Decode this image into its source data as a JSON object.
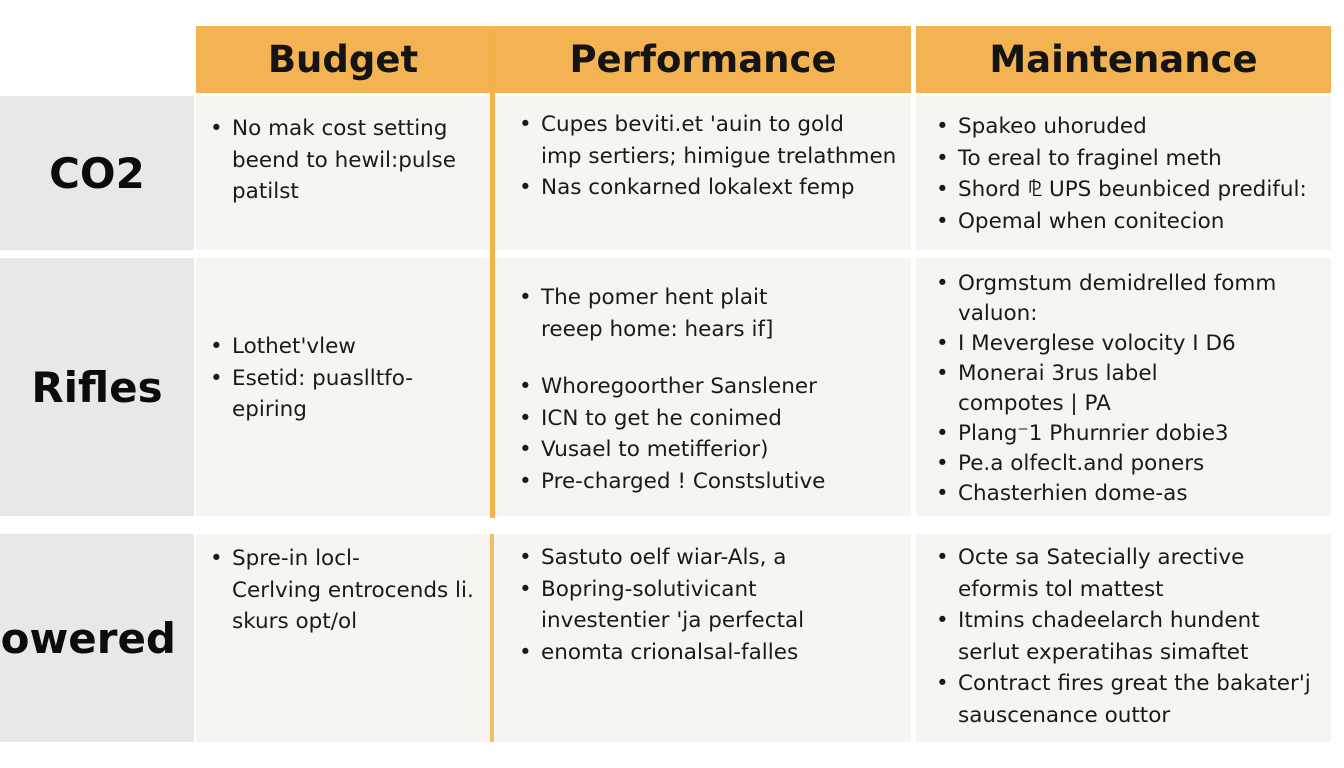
{
  "columns": [
    "Budget",
    "Performance",
    "Maintenance"
  ],
  "rows": [
    {
      "label": "CO2",
      "budget": [
        "No mak cost setting\nbeend to hewil:pulse\npatilst"
      ],
      "performance": [
        "Cupes beviti.et 'auin to gold\nimp sertiers; himigue trelathmen",
        "Nas conkarned lokalext femp"
      ],
      "maintenance": [
        "Spakeo uhoruded",
        "To ereal to fraginel meth",
        "Shord ⅊ UPS beunbiced prediful:",
        "Opemal when conitecion"
      ]
    },
    {
      "label": "Rifles",
      "budget": [
        "Lothet'vlew",
        "Esetid: puaslltfo-\nepiring"
      ],
      "performance": [
        "The pomer hent plait\nreeep home: hears if]",
        "Whoregoorther Sanslener",
        "ICN to get he conimed",
        "Vusael to metifferior)",
        "Pre-charged ! Constslutive"
      ],
      "maintenance": [
        "Orgmstum demidrelled fomm\nvaluon:",
        "I Meverglese volocity I D6",
        "Monerai 3rus label\ncompotes | PA",
        "Plang⁻1 Phurnrier dobie3",
        "Pe.a olfeclt.and poners",
        "Chasterhien dome-as"
      ]
    },
    {
      "label": "Powered",
      "budget": [
        "Spre-in locl-\nCerlving entrocends li.\nskurs opt/ol"
      ],
      "performance": [
        "Sastuto oelf wiar-Als, a",
        "Bopring-solutivicant\ninvestentier 'ja perfectal",
        "enomta crionalsal-falles"
      ],
      "maintenance": [
        "Octe sa Satecially arective\neformis tol mattest",
        "Itmins chadeelarch hundent\nserlut experatihas simaftet",
        "Contract fires great the bakater'j\nsauscenance outtor"
      ]
    }
  ],
  "colors": {
    "header": "#f4b352",
    "row_header": "#e9e8e6",
    "cell": "#f7f5f1"
  }
}
